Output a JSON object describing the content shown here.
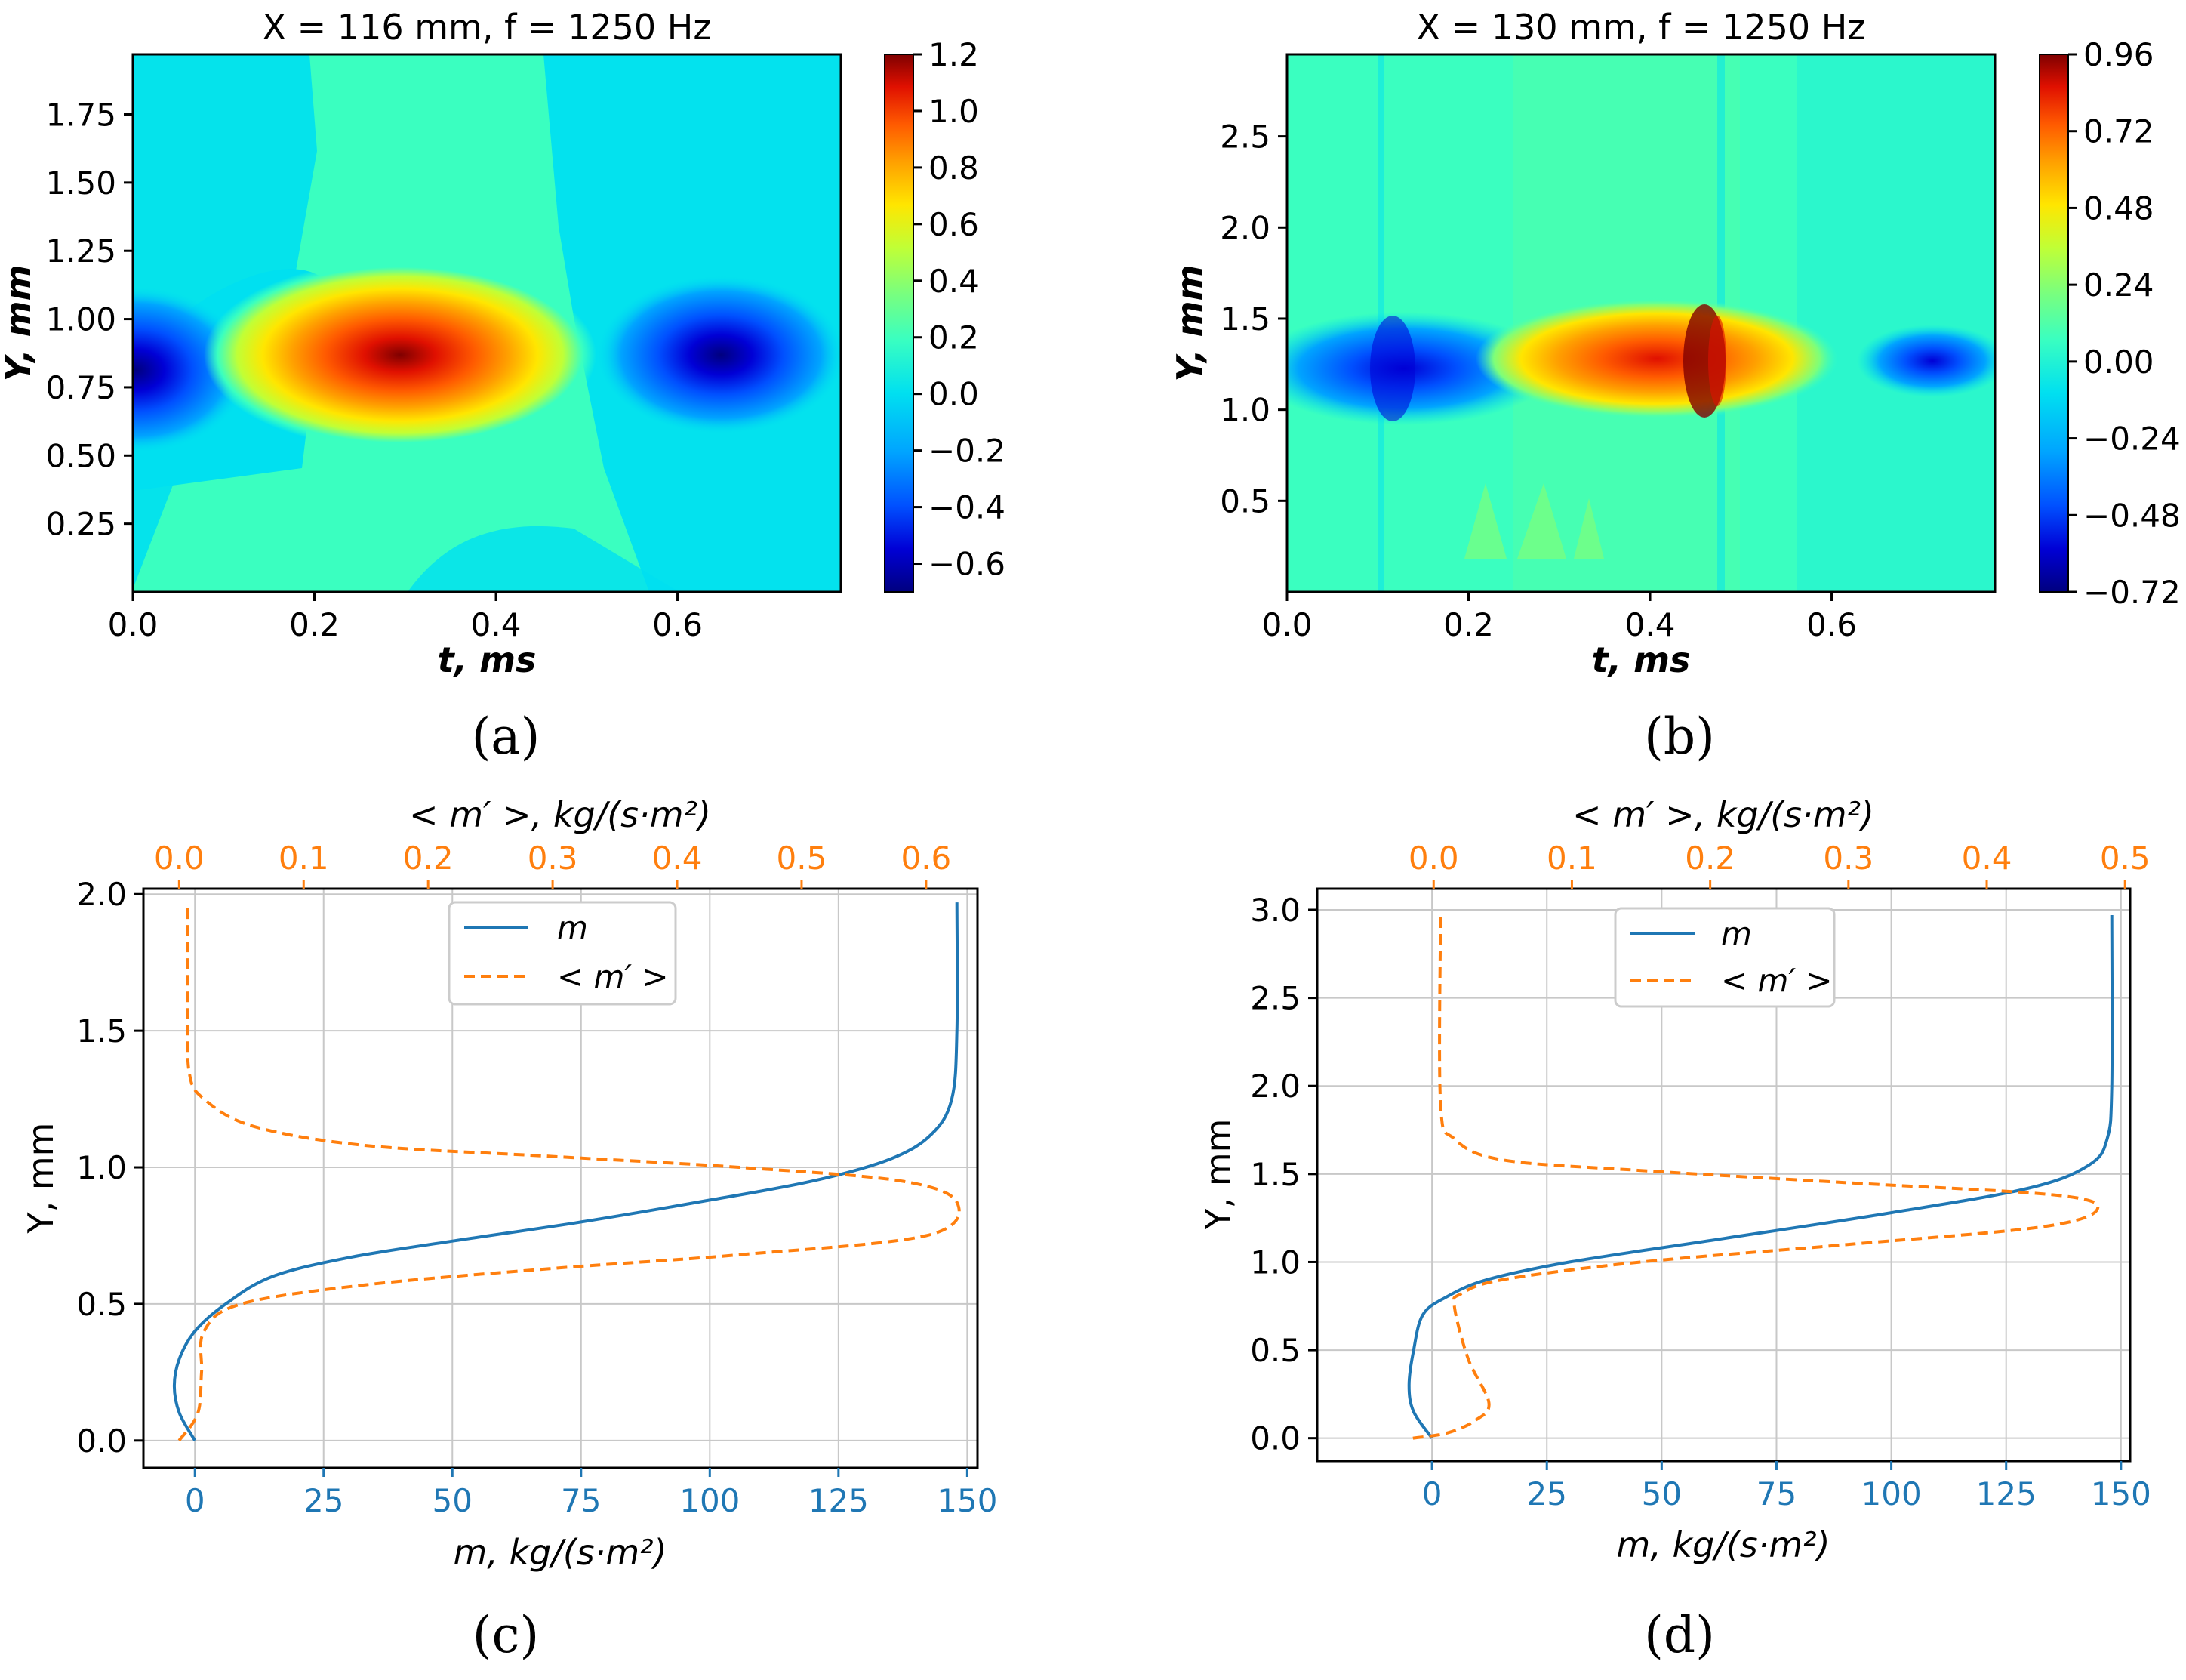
{
  "colors": {
    "blue": "#1f77b4",
    "orange": "#ff7f0e",
    "grid": "#c8c8c8",
    "cmap": [
      "#00007f",
      "#0000d6",
      "#0050ff",
      "#00a4ff",
      "#00e0f0",
      "#3affc0",
      "#7dff7a",
      "#c0ff36",
      "#ffe600",
      "#ffa000",
      "#ff5a00",
      "#e01000",
      "#7f0000"
    ]
  },
  "chart_data": [
    {
      "panel": "a",
      "type": "heatmap",
      "title": "X = 116 mm, f = 1250 Hz",
      "xlabel": "t, ms",
      "ylabel": "Y, mm",
      "xlim": [
        0.0,
        0.78
      ],
      "ylim": [
        0.0,
        1.97
      ],
      "xticks": [
        "0.0",
        "0.2",
        "0.4",
        "0.6"
      ],
      "yticks": [
        "0.25",
        "0.50",
        "0.75",
        "1.00",
        "1.25",
        "1.50",
        "1.75"
      ],
      "colorbar": {
        "min": -0.7,
        "max": 1.2,
        "ticks": [
          "−0.6",
          "−0.4",
          "−0.2",
          "0.0",
          "0.2",
          "0.4",
          "0.6",
          "0.8",
          "1.0",
          "1.2"
        ]
      },
      "features": [
        {
          "kind": "min",
          "t": 0.0,
          "y": 0.8,
          "value": -0.4
        },
        {
          "kind": "max",
          "t": 0.3,
          "y": 0.87,
          "value": 1.2
        },
        {
          "kind": "min",
          "t": 0.65,
          "y": 0.86,
          "value": -0.6
        }
      ],
      "caption": "(a)"
    },
    {
      "panel": "b",
      "type": "heatmap",
      "title": "X = 130 mm, f = 1250 Hz",
      "xlabel": "t, ms",
      "ylabel": "Y, mm",
      "xlim": [
        0.0,
        0.78
      ],
      "ylim": [
        0.0,
        2.95
      ],
      "xticks": [
        "0.0",
        "0.2",
        "0.4",
        "0.6"
      ],
      "yticks": [
        "0.5",
        "1.0",
        "1.5",
        "2.0",
        "2.5"
      ],
      "colorbar": {
        "min": -0.72,
        "max": 0.96,
        "ticks": [
          "−0.72",
          "−0.48",
          "−0.24",
          "0.00",
          "0.24",
          "0.48",
          "0.72",
          "0.96"
        ]
      },
      "features": [
        {
          "kind": "min",
          "t": 0.1,
          "y": 1.27,
          "value": -0.6
        },
        {
          "kind": "max",
          "t": 0.42,
          "y": 1.28,
          "value": 0.8
        },
        {
          "kind": "max",
          "t": 0.46,
          "y": 1.28,
          "value": 0.96
        },
        {
          "kind": "min",
          "t": 0.72,
          "y": 1.28,
          "value": -0.45
        }
      ],
      "caption": "(b)"
    },
    {
      "panel": "c",
      "type": "line",
      "xlabel": "m, kg/(s·m²)",
      "x2label": "< m′ >, kg/(s·m²)",
      "ylabel": "Y, mm",
      "xlim": [
        -10,
        152
      ],
      "x2lim": [
        -0.0287,
        0.6413
      ],
      "ylim": [
        -0.1,
        2.02
      ],
      "xticks": [
        "0",
        "25",
        "50",
        "75",
        "100",
        "125",
        "150"
      ],
      "x2ticks": [
        "0.0",
        "0.1",
        "0.2",
        "0.3",
        "0.4",
        "0.5",
        "0.6"
      ],
      "yticks": [
        "0.0",
        "0.5",
        "1.0",
        "1.5",
        "2.0"
      ],
      "legend": [
        "m",
        "< m′ >"
      ],
      "series": [
        {
          "name": "m",
          "axis": "bottom",
          "x": [
            0,
            -3,
            -4,
            -3,
            0,
            6,
            15,
            30,
            50,
            75,
            100,
            120,
            135,
            143,
            147,
            148,
            148
          ],
          "y": [
            0.0,
            0.1,
            0.2,
            0.3,
            0.4,
            0.5,
            0.6,
            0.67,
            0.73,
            0.8,
            0.88,
            0.95,
            1.03,
            1.12,
            1.25,
            1.5,
            1.97
          ]
        },
        {
          "name": "< m′ >",
          "axis": "top",
          "x": [
            0.0,
            0.015,
            0.018,
            0.02,
            0.05,
            0.15,
            0.3,
            0.45,
            0.6,
            0.625,
            0.58,
            0.45,
            0.3,
            0.15,
            0.06,
            0.02,
            0.008,
            0.007,
            0.007
          ],
          "y": [
            0.0,
            0.1,
            0.25,
            0.4,
            0.5,
            0.57,
            0.63,
            0.68,
            0.75,
            0.87,
            0.95,
            1.0,
            1.04,
            1.08,
            1.15,
            1.25,
            1.35,
            1.6,
            1.97
          ]
        }
      ],
      "caption": "(c)"
    },
    {
      "panel": "d",
      "type": "line",
      "xlabel": "m, kg/(s·m²)",
      "x2label": "< m′ >, kg/(s·m²)",
      "ylabel": "Y, mm",
      "xlim": [
        -25,
        152
      ],
      "x2lim": [
        -0.0842,
        0.5037
      ],
      "ylim": [
        -0.13,
        3.12
      ],
      "xticks": [
        "0",
        "25",
        "50",
        "75",
        "100",
        "125",
        "150"
      ],
      "x2ticks": [
        "0.0",
        "0.1",
        "0.2",
        "0.3",
        "0.4",
        "0.5"
      ],
      "yticks": [
        "0.0",
        "0.5",
        "1.0",
        "1.5",
        "2.0",
        "2.5",
        "3.0"
      ],
      "legend": [
        "m",
        "< m′ >"
      ],
      "series": [
        {
          "name": "m",
          "axis": "bottom",
          "x": [
            0,
            -4,
            -5,
            -4,
            -2,
            3,
            12,
            30,
            60,
            100,
            130,
            143,
            147,
            148,
            148
          ],
          "y": [
            0.0,
            0.15,
            0.3,
            0.5,
            0.7,
            0.8,
            0.9,
            1.0,
            1.12,
            1.28,
            1.42,
            1.55,
            1.7,
            2.0,
            2.97
          ]
        },
        {
          "name": "< m′ >",
          "axis": "top",
          "x": [
            -0.015,
            0.01,
            0.03,
            0.04,
            0.025,
            0.015,
            0.02,
            0.05,
            0.15,
            0.3,
            0.44,
            0.48,
            0.45,
            0.3,
            0.15,
            0.05,
            0.015,
            0.005,
            0.005
          ],
          "y": [
            0.0,
            0.03,
            0.1,
            0.2,
            0.45,
            0.75,
            0.82,
            0.9,
            1.0,
            1.1,
            1.2,
            1.3,
            1.38,
            1.45,
            1.52,
            1.58,
            1.7,
            1.9,
            2.97
          ]
        }
      ],
      "caption": "(d)"
    }
  ]
}
